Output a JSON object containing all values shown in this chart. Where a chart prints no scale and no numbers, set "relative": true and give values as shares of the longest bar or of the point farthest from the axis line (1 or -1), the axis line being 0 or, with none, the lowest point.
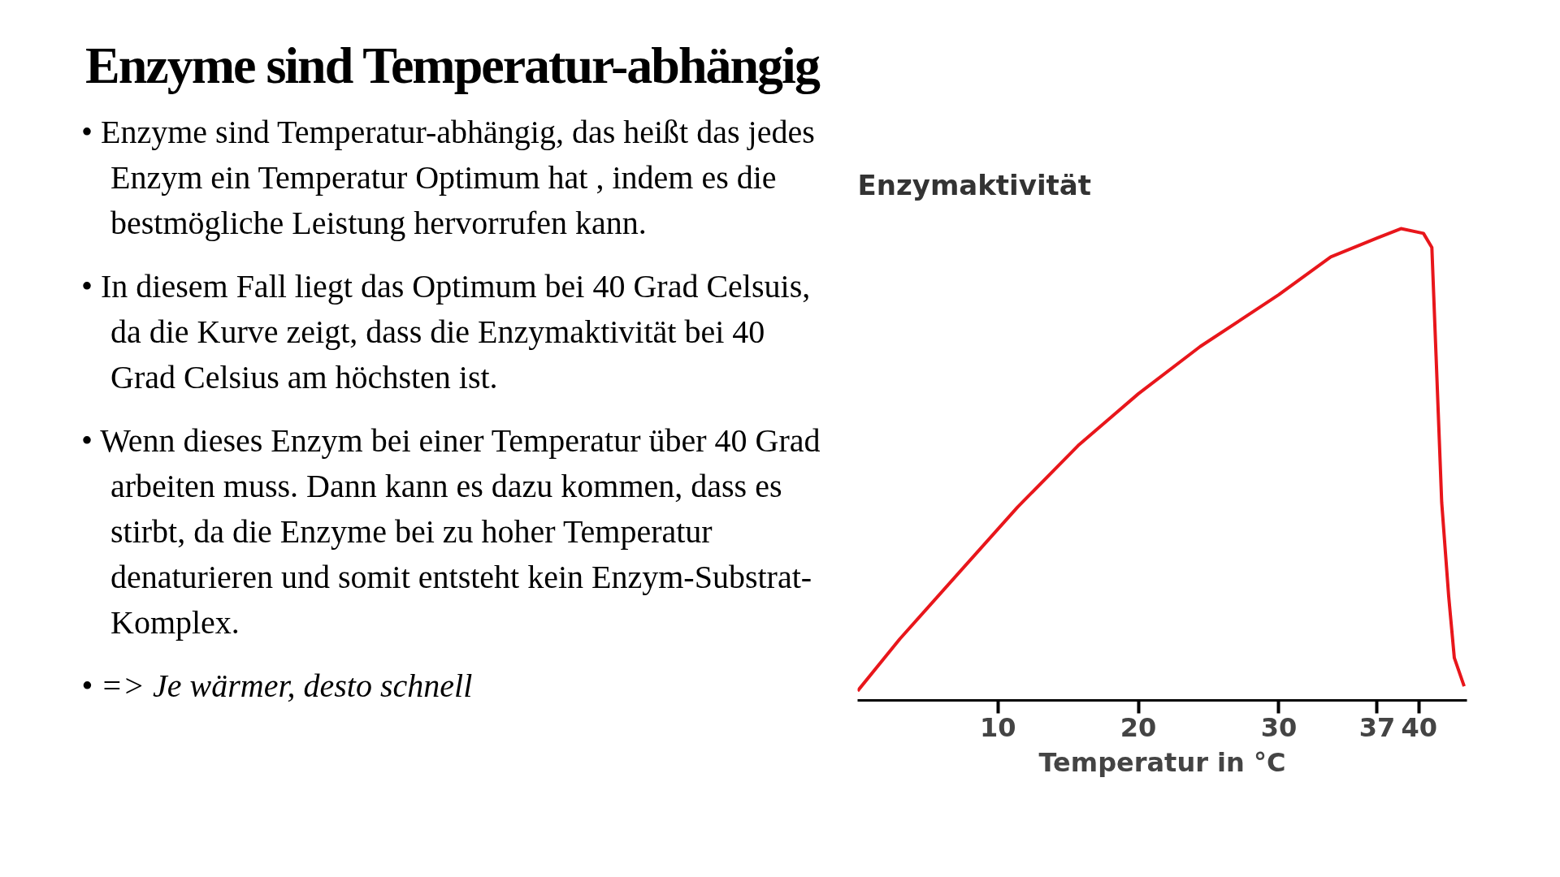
{
  "chart_data": {
    "type": "line",
    "title": "Enzyme sind Temperatur-abhängig",
    "annotations": [
      "• Enzyme sind Temperatur-abhängig, das heißt das jedes Enzym  ein Temperatur Optimum hat , indem es die bestmögliche Leistung hervorrufen kann.",
      "• In diesem Fall liegt das Optimum bei 40 Grad Celsuis, da die Kurve zeigt, dass die Enzymaktivität bei 40 Grad Celsius am höchsten ist.",
      "• Wenn dieses Enzym bei einer Temperatur über 40 Grad arbeiten muss. Dann kann es dazu kommen, dass es stirbt, da die Enzyme bei zu hoher Temperatur denaturieren und somit entsteht kein Enzym-Substrat-Komplex.",
      "• => Je wärmer, desto schnell"
    ],
    "ylabel": "Enzymaktivität",
    "xlabel": "Temperatur in °C",
    "relative": true,
    "x": [
      0,
      3.0,
      7.2,
      11.4,
      15.7,
      20,
      24.4,
      30,
      33.7,
      37,
      38.7,
      40.3,
      40.9,
      41.2,
      41.6,
      42.1,
      42.5,
      43.2
    ],
    "series": [
      {
        "color": "#e8161b",
        "values": [
          0.02,
          0.13,
          0.27,
          0.41,
          0.54,
          0.65,
          0.75,
          0.86,
          0.94,
          0.98,
          1.0,
          0.99,
          0.96,
          0.73,
          0.42,
          0.22,
          0.09,
          0.03
        ]
      }
    ],
    "xlim": [
      0,
      43.4
    ],
    "xticks": [
      10,
      20,
      30,
      37,
      40
    ],
    "grid": false,
    "marker": "none",
    "line_style": "solid"
  }
}
